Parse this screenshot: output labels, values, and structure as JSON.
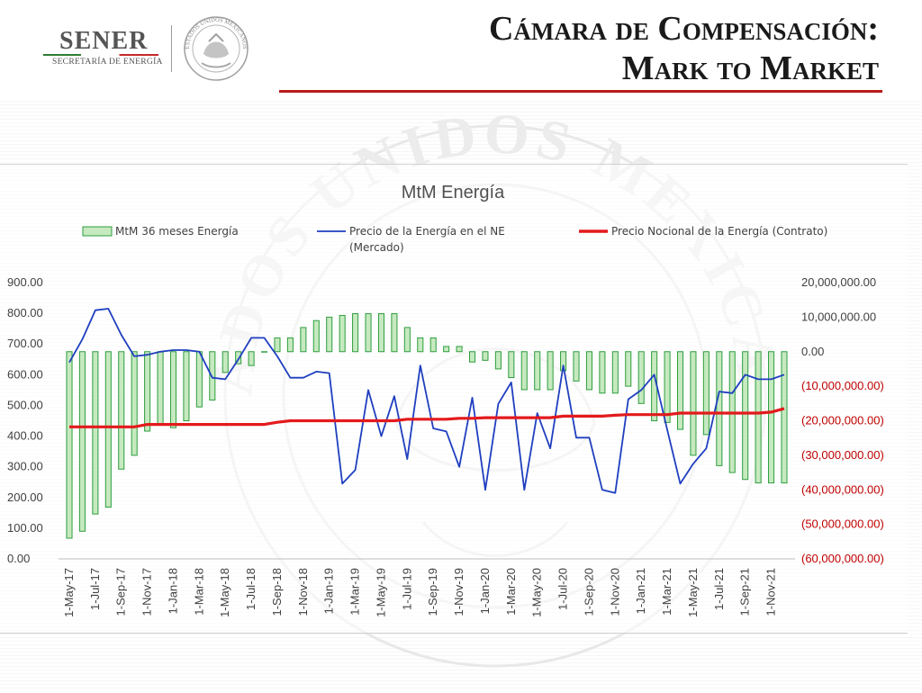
{
  "header": {
    "logo_name": "SENER",
    "logo_subtitle": "SECRETARÍA DE ENERGÍA",
    "seal_text": "ESTADOS UNIDOS MEXICANOS",
    "title_line1": "Cámara de Compensación:",
    "title_line2": "Mark to Market"
  },
  "watermark_text": "ESTADOS UNIDOS MEXICANOS",
  "colors": {
    "bar_fill": "#c6e9c0",
    "bar_stroke": "#2e9e3e",
    "market_line": "#1f3fbf",
    "contract_line": "#e31a1c",
    "negative_tick": "#c00000",
    "title_rule": "#b71c1c"
  },
  "chart_data": {
    "type": "bar",
    "title": "MtM Energía",
    "legend": {
      "items": [
        {
          "label": "MtM 36 meses Energía",
          "kind": "bar"
        },
        {
          "label": "Precio de la Energía en el NE (Mercado)",
          "kind": "line",
          "color_key": "market_line"
        },
        {
          "label": "Precio Nocional de la Energía (Contrato)",
          "kind": "line",
          "color_key": "contract_line"
        }
      ],
      "placement": "top"
    },
    "x_labels": [
      "1-May-17",
      "1-Jul-17",
      "1-Sep-17",
      "1-Nov-17",
      "1-Jan-18",
      "1-Mar-18",
      "1-May-18",
      "1-Jul-18",
      "1-Sep-18",
      "1-Nov-18",
      "1-Jan-19",
      "1-Mar-19",
      "1-May-19",
      "1-Jul-19",
      "1-Sep-19",
      "1-Nov-19",
      "1-Jan-20",
      "1-Mar-20",
      "1-May-20",
      "1-Jul-20",
      "1-Sep-20",
      "1-Nov-20",
      "1-Jan-21",
      "1-Mar-21",
      "1-May-21",
      "1-Jul-21",
      "1-Sep-21",
      "1-Nov-21"
    ],
    "left_axis": {
      "ylim": [
        0,
        900
      ],
      "ticks": [
        "0.00",
        "100.00",
        "200.00",
        "300.00",
        "400.00",
        "500.00",
        "600.00",
        "700.00",
        "800.00",
        "900.00"
      ]
    },
    "right_axis": {
      "ylim": [
        -60000000,
        20000000
      ],
      "ticks": [
        {
          "label": "(60,000,000.00)",
          "negative": true
        },
        {
          "label": "(50,000,000.00)",
          "negative": true
        },
        {
          "label": "(40,000,000.00)",
          "negative": true
        },
        {
          "label": "(30,000,000.00)",
          "negative": true
        },
        {
          "label": "(20,000,000.00)",
          "negative": true
        },
        {
          "label": "(10,000,000.00)",
          "negative": true
        },
        {
          "label": "0.00",
          "negative": false
        },
        {
          "label": "10,000,000.00",
          "negative": false
        },
        {
          "label": "20,000,000.00",
          "negative": false
        }
      ]
    },
    "series": [
      {
        "name": "MtM 36 meses Energía",
        "type": "bar",
        "axis": "right",
        "values": [
          -54000000,
          -52000000,
          -47000000,
          -45000000,
          -34000000,
          -30000000,
          -23000000,
          -21000000,
          -22000000,
          -20000000,
          -16000000,
          -14000000,
          -6000000,
          -3500000,
          -4000000,
          0,
          4000000,
          4000000,
          7000000,
          9000000,
          10000000,
          10500000,
          11000000,
          11000000,
          11000000,
          11000000,
          7000000,
          4000000,
          4000000,
          1500000,
          1500000,
          -3000000,
          -2500000,
          -5000000,
          -7500000,
          -11000000,
          -11000000,
          -11000000,
          -5500000,
          -8500000,
          -11000000,
          -12000000,
          -12000000,
          -10000000,
          -15000000,
          -20000000,
          -20500000,
          -22500000,
          -30000000,
          -24000000,
          -33000000,
          -35000000,
          -37000000,
          -38000000,
          -38000000,
          -38000000
        ]
      },
      {
        "name": "Precio de la Energía en el NE (Mercado)",
        "type": "line",
        "axis": "left",
        "values": [
          640,
          715,
          810,
          815,
          730,
          660,
          665,
          675,
          680,
          680,
          675,
          590,
          585,
          650,
          720,
          720,
          660,
          590,
          590,
          610,
          605,
          245,
          290,
          550,
          400,
          530,
          325,
          630,
          425,
          415,
          300,
          525,
          225,
          505,
          575,
          225,
          475,
          360,
          630,
          395,
          395,
          225,
          215,
          520,
          550,
          600,
          420,
          245,
          310,
          360,
          545,
          540,
          600,
          585,
          585,
          600
        ]
      },
      {
        "name": "Precio Nocional de la Energía (Contrato)",
        "type": "line",
        "axis": "left",
        "values": [
          430,
          430,
          430,
          430,
          430,
          430,
          438,
          438,
          438,
          438,
          438,
          438,
          438,
          438,
          438,
          438,
          445,
          450,
          450,
          450,
          450,
          450,
          450,
          450,
          450,
          450,
          455,
          455,
          455,
          455,
          458,
          458,
          460,
          460,
          460,
          460,
          460,
          460,
          465,
          465,
          465,
          465,
          468,
          470,
          470,
          470,
          470,
          475,
          475,
          475,
          475,
          475,
          475,
          475,
          478,
          490
        ]
      }
    ]
  }
}
